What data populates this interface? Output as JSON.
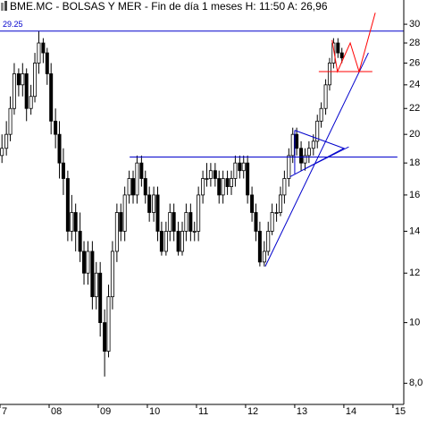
{
  "chart_data": {
    "type": "candlestick",
    "title": "BME.MC - BOLSAS Y MER - Fin de día 1 meses H: 11:50 A: 26,96",
    "log_scale": true,
    "x": [
      2007.04,
      2007.13,
      2007.21,
      2007.29,
      2007.38,
      2007.46,
      2007.54,
      2007.63,
      2007.71,
      2007.79,
      2007.88,
      2007.96,
      2008.04,
      2008.13,
      2008.21,
      2008.29,
      2008.38,
      2008.46,
      2008.54,
      2008.63,
      2008.71,
      2008.79,
      2008.88,
      2008.96,
      2009.04,
      2009.13,
      2009.21,
      2009.29,
      2009.38,
      2009.46,
      2009.54,
      2009.63,
      2009.71,
      2009.79,
      2009.88,
      2009.96,
      2010.04,
      2010.13,
      2010.21,
      2010.29,
      2010.38,
      2010.46,
      2010.54,
      2010.63,
      2010.71,
      2010.79,
      2010.88,
      2010.96,
      2011.04,
      2011.13,
      2011.21,
      2011.29,
      2011.38,
      2011.46,
      2011.54,
      2011.63,
      2011.71,
      2011.79,
      2011.88,
      2011.96,
      2012.04,
      2012.13,
      2012.21,
      2012.29,
      2012.38,
      2012.46,
      2012.54,
      2012.63,
      2012.71,
      2012.79,
      2012.88,
      2012.96,
      2013.04,
      2013.13,
      2013.21,
      2013.29,
      2013.38,
      2013.46,
      2013.54,
      2013.63,
      2013.71,
      2013.79,
      2013.88,
      2013.96
    ],
    "open": [
      18.5,
      19,
      20,
      22,
      25,
      24,
      25,
      22,
      23,
      26,
      28,
      27,
      25,
      21,
      20,
      18,
      17,
      14,
      15,
      14,
      13,
      12,
      13,
      11,
      12,
      10,
      9,
      11,
      13,
      15,
      14,
      16,
      17,
      16,
      18,
      17,
      16,
      15,
      16,
      14,
      13,
      14,
      15,
      14,
      13,
      14,
      15,
      14,
      14,
      16,
      17,
      17,
      17.5,
      17,
      16,
      17,
      16.5,
      17,
      18,
      17.5,
      18,
      16,
      15,
      14,
      12.5,
      13,
      14,
      15,
      15,
      16,
      17,
      18.5,
      20,
      19,
      18,
      18.5,
      19,
      19.5,
      21,
      22,
      24,
      26,
      28,
      27
    ],
    "high": [
      20,
      21,
      23,
      26,
      25.5,
      26,
      25.5,
      24,
      27,
      29.25,
      28.5,
      27.5,
      26,
      22,
      21,
      19,
      17.5,
      16,
      15.5,
      15,
      13.5,
      13.5,
      13.5,
      12.5,
      12.5,
      10.5,
      11.5,
      13.5,
      15.5,
      15.5,
      16.5,
      17.5,
      17.5,
      18.5,
      18.5,
      17.5,
      16.5,
      16.5,
      16.5,
      14.5,
      14.5,
      15.5,
      15.5,
      14.5,
      14.5,
      15.5,
      15.5,
      14.5,
      16.5,
      17.5,
      18,
      18,
      18,
      17.5,
      17.5,
      17.5,
      17.5,
      18.5,
      18.5,
      18.5,
      18.5,
      16.5,
      15.5,
      14.5,
      13.5,
      14.5,
      15.5,
      15.5,
      16.5,
      17.5,
      19,
      20.5,
      20.5,
      19.5,
      19,
      19.5,
      20,
      21.5,
      22.5,
      24.5,
      26.5,
      28.5,
      28.5,
      27.5
    ],
    "low": [
      18,
      18.5,
      19.5,
      21.5,
      23,
      23,
      21,
      21.5,
      22.5,
      25,
      26,
      24,
      20,
      19,
      17,
      16,
      13.5,
      13.5,
      13,
      12.5,
      11.5,
      11.5,
      10.5,
      10.5,
      9.5,
      8.2,
      8.8,
      10.5,
      12.5,
      13.5,
      13.5,
      15.5,
      15.5,
      15.5,
      16.5,
      15.5,
      14.5,
      14.5,
      13.5,
      12.8,
      12.8,
      13.5,
      13.5,
      12.8,
      12.8,
      13.5,
      13.5,
      13.5,
      13.5,
      15.5,
      16.5,
      16.5,
      16.5,
      15.5,
      15.5,
      16,
      16,
      16.5,
      17,
      17,
      15.5,
      14.5,
      13.5,
      12.3,
      12.3,
      12.8,
      13.8,
      14.5,
      14.8,
      15.5,
      16.5,
      18,
      18.5,
      17.5,
      17.5,
      18,
      18.5,
      19,
      20.5,
      21.5,
      23.5,
      25.5,
      26.5,
      26
    ],
    "close": [
      19,
      20,
      22,
      25,
      24,
      25,
      22,
      23,
      26,
      28,
      27,
      25,
      21,
      20,
      18,
      17,
      14,
      15,
      14,
      13,
      12,
      13,
      11,
      12,
      10,
      9,
      11,
      13,
      15,
      14,
      16,
      17,
      16,
      18,
      17,
      16,
      15,
      16,
      14,
      13,
      14,
      15,
      14,
      13,
      14,
      15,
      14,
      14,
      16,
      17,
      17,
      17.5,
      17,
      16,
      17,
      16.5,
      17,
      18,
      17.5,
      18,
      16,
      15,
      14,
      12.5,
      13,
      14,
      15,
      15,
      16,
      17,
      18.5,
      20,
      19,
      18,
      18.5,
      19,
      19.5,
      21,
      22,
      24,
      26,
      28,
      27,
      26.5
    ],
    "up_color": "#ffffff",
    "down_color": "#000000",
    "xlim": [
      2007,
      2015.22
    ],
    "ylim": [
      7.4,
      32.8
    ],
    "xticks": [
      {
        "value": 2007,
        "label": "7"
      },
      {
        "value": 2008,
        "label": "08"
      },
      {
        "value": 2009,
        "label": "09"
      },
      {
        "value": 2010,
        "label": "10"
      },
      {
        "value": 2011,
        "label": "11"
      },
      {
        "value": 2012,
        "label": "12"
      },
      {
        "value": 2013,
        "label": "13"
      },
      {
        "value": 2014,
        "label": "14"
      },
      {
        "value": 2015,
        "label": "15"
      }
    ],
    "yticks": [
      30,
      28,
      26,
      24,
      22,
      20,
      18,
      16,
      14,
      12,
      10,
      {
        "value": 8,
        "label": "8,0"
      }
    ],
    "lines": [
      {
        "label": "29.25",
        "color": "#0000cc",
        "x": [
          2007,
          2015.22
        ],
        "values": [
          29.25,
          29.25
        ]
      },
      {
        "color": "#0000cc",
        "x": [
          2009.64,
          2015.09
        ],
        "values": [
          18.4,
          18.4
        ]
      },
      {
        "color": "#0000cc",
        "x": [
          2012.4,
          2014.5
        ],
        "values": [
          12.3,
          27
        ]
      },
      {
        "color": "#0000cc",
        "x": [
          2013.0,
          2014.0,
          2012.9
        ],
        "values": [
          20.3,
          19.0,
          17.1
        ]
      },
      {
        "color": "#0000cc",
        "x": [
          2013.0,
          2013.0
        ],
        "values": [
          20.3,
          17.3
        ]
      },
      {
        "color": "#0000cc",
        "x": [
          2013.2,
          2014.1
        ],
        "values": [
          17.6,
          19.1
        ]
      },
      {
        "color": "#ff0000",
        "x": [
          2013.49,
          2014.58
        ],
        "values": [
          25.2,
          25.2
        ]
      },
      {
        "color": "#ff0000",
        "x": [
          2013.76,
          2013.87,
          2014.13,
          2014.31,
          2014.64
        ],
        "values": [
          28.3,
          25.2,
          28.0,
          25.2,
          31.3
        ]
      }
    ]
  }
}
